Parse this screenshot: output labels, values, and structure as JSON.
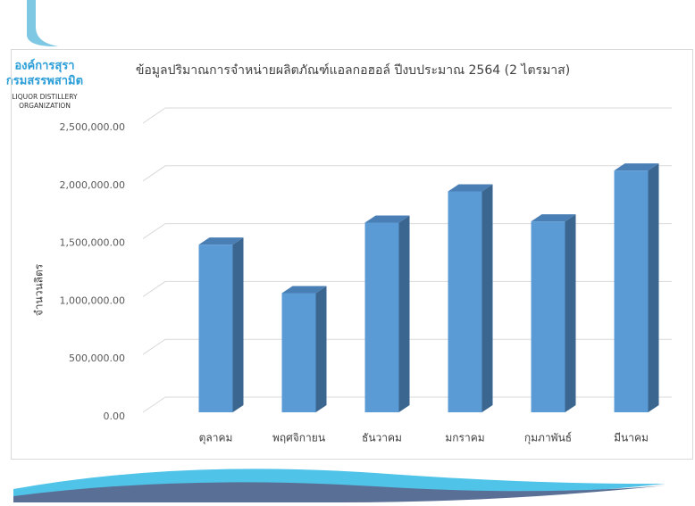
{
  "logo": {
    "name_th_1": "องค์การสุรา",
    "name_th_2": "กรมสรรพสามิต",
    "name_en_1": "Liquor Distillery",
    "name_en_2": "Organization"
  },
  "chart_data": {
    "type": "bar3d",
    "title": "ข้อมูลปริมาณการจำหน่ายผลิตภัณฑ์แอลกอฮอล์  ปีงบประมาณ 2564 (2 ไตรมาส)",
    "y_label": "จำนวนลิตร",
    "categories": [
      "ตุลาคม",
      "พฤศจิกายน",
      "ธันวาคม",
      "มกราคม",
      "กุมภาพันธ์",
      "มีนาคม"
    ],
    "values": [
      1450000,
      1030000,
      1640000,
      1910000,
      1650000,
      2090000
    ],
    "color": "#5b9bd5",
    "ylim": [
      0,
      2500000
    ],
    "yticks": [
      {
        "value": 0,
        "label": "0.00"
      },
      {
        "value": 500000,
        "label": "500,000.00"
      },
      {
        "value": 1000000,
        "label": "1,000,000.00"
      },
      {
        "value": 1500000,
        "label": "1,500,000.00"
      },
      {
        "value": 2000000,
        "label": "2,000,000.00"
      },
      {
        "value": 2500000,
        "label": "2,500,000.00"
      }
    ],
    "grid": true
  }
}
